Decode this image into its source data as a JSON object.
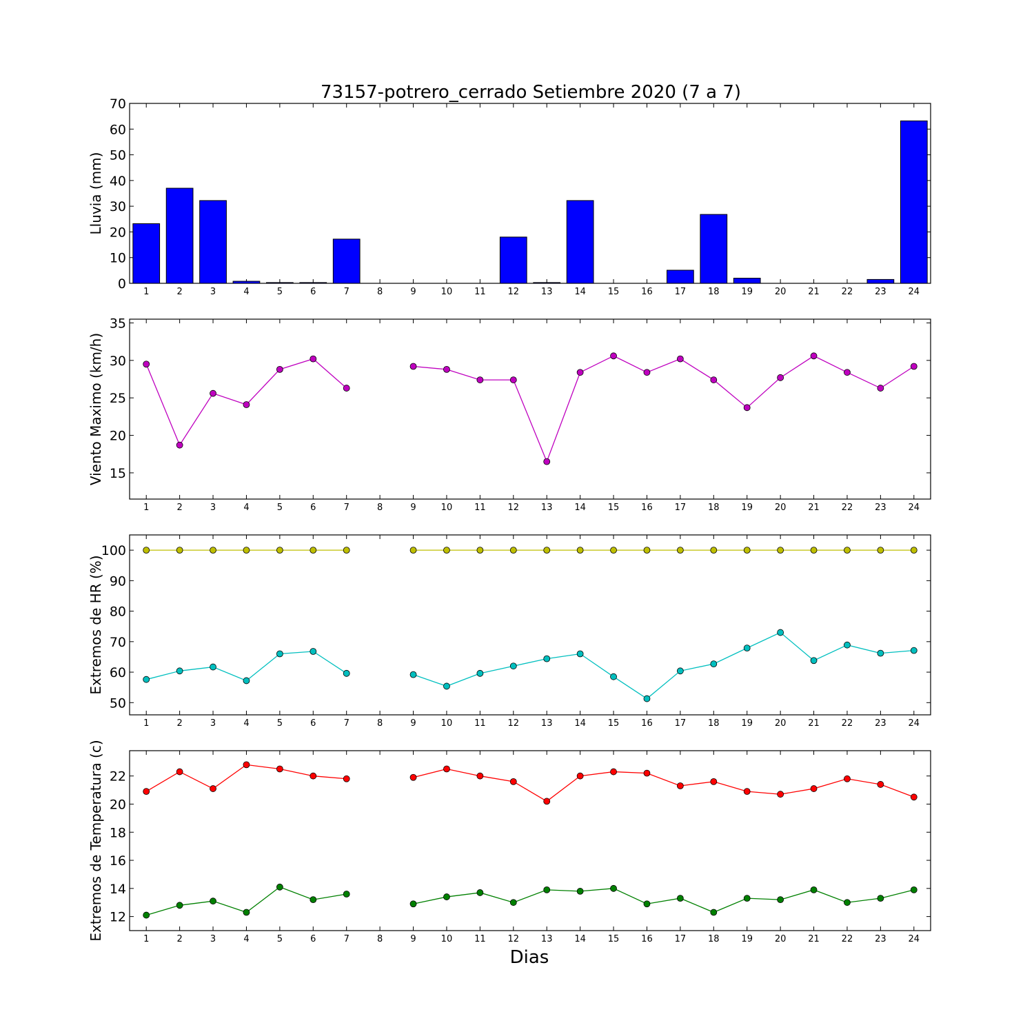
{
  "title": "73157-potrero_cerrado Setiembre 2020  (7 a 7)",
  "xlabel": "Dias",
  "chart_data": [
    {
      "type": "bar",
      "ylabel": "Lluvia (mm)",
      "x": [
        1,
        2,
        3,
        4,
        5,
        6,
        7,
        8,
        9,
        10,
        11,
        12,
        13,
        14,
        15,
        16,
        17,
        18,
        19,
        20,
        21,
        22,
        23,
        24
      ],
      "ylim": [
        0,
        70
      ],
      "yticks": [
        0,
        10,
        20,
        30,
        40,
        50,
        60,
        70
      ],
      "series": [
        {
          "color": "#0000ff",
          "values": [
            23.2,
            37.0,
            32.2,
            0.8,
            0.3,
            0.3,
            17.2,
            0,
            0,
            0,
            0,
            18.0,
            0.3,
            32.2,
            0,
            0,
            5.1,
            26.8,
            2.0,
            0,
            0,
            0,
            1.5,
            63.2
          ]
        }
      ]
    },
    {
      "type": "line",
      "ylabel": "Viento Maximo (km/h)",
      "x": [
        1,
        2,
        3,
        4,
        5,
        6,
        7,
        8,
        9,
        10,
        11,
        12,
        13,
        14,
        15,
        16,
        17,
        18,
        19,
        20,
        21,
        22,
        23,
        24
      ],
      "ylim": [
        11.5,
        35.5
      ],
      "yticks": [
        15,
        20,
        25,
        30,
        35
      ],
      "series": [
        {
          "color": "#bf00bf",
          "values": [
            29.5,
            18.7,
            25.6,
            24.1,
            28.8,
            30.2,
            26.3,
            null,
            29.2,
            28.8,
            27.4,
            27.4,
            16.5,
            28.4,
            30.6,
            28.4,
            30.2,
            27.4,
            23.7,
            27.7,
            30.6,
            28.4,
            26.3,
            29.2
          ]
        }
      ]
    },
    {
      "type": "line",
      "ylabel": "Extremos de HR (%)",
      "x": [
        1,
        2,
        3,
        4,
        5,
        6,
        7,
        8,
        9,
        10,
        11,
        12,
        13,
        14,
        15,
        16,
        17,
        18,
        19,
        20,
        21,
        22,
        23,
        24
      ],
      "ylim": [
        46,
        105
      ],
      "yticks": [
        50,
        60,
        70,
        80,
        90,
        100
      ],
      "series": [
        {
          "color": "#bfbf00",
          "values": [
            100,
            100,
            100,
            100,
            100,
            100,
            100,
            null,
            100,
            100,
            100,
            100,
            100,
            100,
            100,
            100,
            100,
            100,
            100,
            100,
            100,
            100,
            100,
            100
          ]
        },
        {
          "color": "#00bfbf",
          "values": [
            57.6,
            60.4,
            61.7,
            57.2,
            66.0,
            66.8,
            59.6,
            null,
            59.2,
            55.4,
            59.6,
            62.0,
            64.4,
            66.0,
            58.5,
            51.3,
            60.4,
            62.7,
            67.9,
            73.0,
            63.8,
            68.9,
            66.2,
            67.1
          ]
        }
      ]
    },
    {
      "type": "line",
      "ylabel": "Extremos de Temperatura (c)",
      "x": [
        1,
        2,
        3,
        4,
        5,
        6,
        7,
        8,
        9,
        10,
        11,
        12,
        13,
        14,
        15,
        16,
        17,
        18,
        19,
        20,
        21,
        22,
        23,
        24
      ],
      "ylim": [
        11.0,
        23.8
      ],
      "yticks": [
        12,
        14,
        16,
        18,
        20,
        22
      ],
      "series": [
        {
          "color": "#ff0000",
          "values": [
            20.9,
            22.3,
            21.1,
            22.8,
            22.5,
            22.0,
            21.8,
            null,
            21.9,
            22.5,
            22.0,
            21.6,
            20.2,
            22.0,
            22.3,
            22.2,
            21.3,
            21.6,
            20.9,
            20.7,
            21.1,
            21.8,
            21.4,
            20.5
          ]
        },
        {
          "color": "#008000",
          "values": [
            12.1,
            12.8,
            13.1,
            12.3,
            14.1,
            13.2,
            13.6,
            null,
            12.9,
            13.4,
            13.7,
            13.0,
            13.9,
            13.8,
            14.0,
            12.9,
            13.3,
            12.3,
            13.3,
            13.2,
            13.9,
            13.0,
            13.3,
            13.9
          ]
        }
      ]
    }
  ]
}
